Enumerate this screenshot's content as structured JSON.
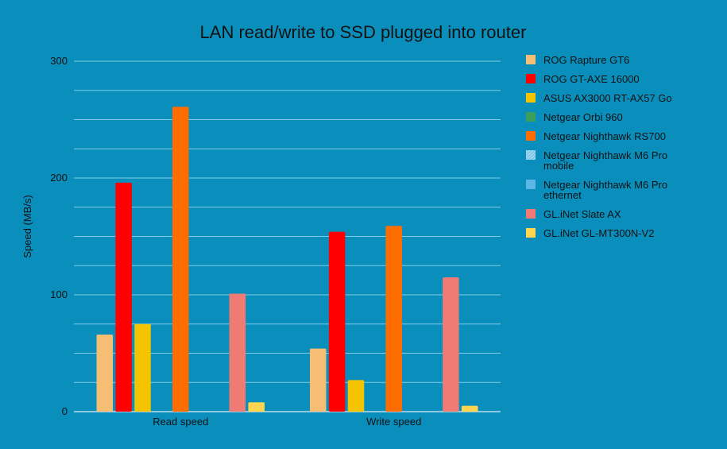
{
  "chart_data": {
    "type": "bar",
    "title": "LAN read/write to SSD plugged into router",
    "xlabel": "",
    "ylabel": "Speed (MB/s)",
    "ylim": [
      0,
      300
    ],
    "yticks": [
      0,
      100,
      200,
      300
    ],
    "ygrid_step": 25,
    "grid": true,
    "legend_position": "right",
    "categories": [
      "Read speed",
      "Write speed"
    ],
    "series": [
      {
        "name": "ROG Rapture GT6",
        "color": "#f5be74",
        "values": [
          66,
          54
        ]
      },
      {
        "name": "ROG GT-AXE 16000",
        "color": "#ff0000",
        "values": [
          196,
          154
        ]
      },
      {
        "name": "ASUS AX3000 RT-AX57 Go",
        "color": "#f5c400",
        "values": [
          75,
          27
        ]
      },
      {
        "name": "Netgear Orbi 960",
        "color": "#3a9e5c",
        "values": [
          0,
          0
        ]
      },
      {
        "name": "Netgear Nighthawk RS700",
        "color": "#ff6d00",
        "values": [
          261,
          159
        ]
      },
      {
        "name": "Netgear Nighthawk M6 Pro mobile",
        "color": "#7cc4e8",
        "values": [
          0,
          0
        ],
        "pattern": "hatch"
      },
      {
        "name": "Netgear Nighthawk M6 Pro ethernet",
        "color": "#5ab7e6",
        "values": [
          0,
          0
        ]
      },
      {
        "name": "GL.iNet Slate AX",
        "color": "#ef7b74",
        "values": [
          101,
          115
        ]
      },
      {
        "name": "GL.iNet GL-MT300N-V2",
        "color": "#ffd54f",
        "values": [
          8,
          5
        ]
      }
    ]
  }
}
